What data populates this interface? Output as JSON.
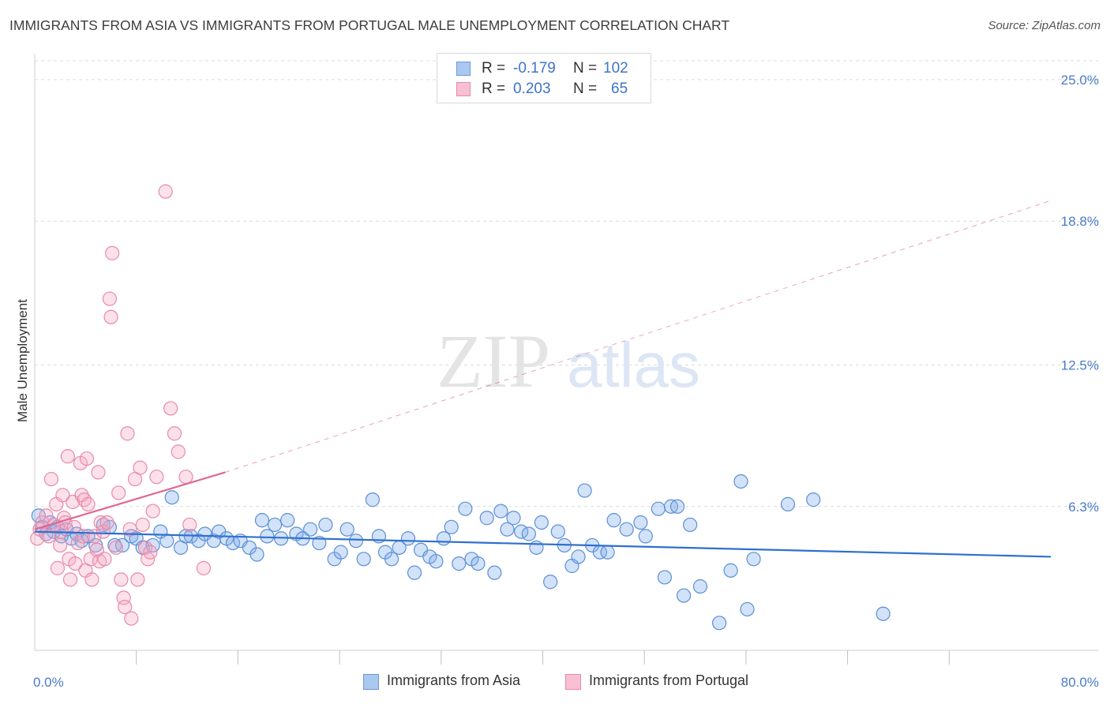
{
  "title": "IMMIGRANTS FROM ASIA VS IMMIGRANTS FROM PORTUGAL MALE UNEMPLOYMENT CORRELATION CHART",
  "source": "Source: ZipAtlas.com",
  "watermark": {
    "zip": "ZIP",
    "atlas": "atlas"
  },
  "legend_top": {
    "rows": [
      {
        "r_label": "R =",
        "r_value": "-0.179",
        "n_label": "N =",
        "n_value": "102",
        "color": "#aac8f0",
        "border": "#6a9ad8"
      },
      {
        "r_label": "R =",
        "r_value": "0.203",
        "n_label": "N =",
        "n_value": "65",
        "color": "#f8c0d2",
        "border": "#e68aa8"
      }
    ]
  },
  "chart_data": {
    "type": "scatter",
    "ylabel": "Male Unemployment",
    "xlim": [
      0,
      80
    ],
    "ylim": [
      0,
      26
    ],
    "y_ticks": [
      6.3,
      12.5,
      18.8,
      25.0
    ],
    "y_tick_labels": [
      "6.3%",
      "12.5%",
      "18.8%",
      "25.0%"
    ],
    "x_tick_labels": [
      "0.0%",
      "80.0%"
    ],
    "grid": true,
    "legend_position": "bottom",
    "series": [
      {
        "name": "Immigrants from Asia",
        "color": "#7fadea",
        "stroke": "#5b8fd6",
        "trend": {
          "x": [
            0,
            80
          ],
          "y": [
            5.2,
            4.1
          ],
          "color": "#2f6fcf"
        },
        "points": [
          [
            0.3,
            5.9
          ],
          [
            0.6,
            5.4
          ],
          [
            0.9,
            5.1
          ],
          [
            1.2,
            5.6
          ],
          [
            1.5,
            5.2
          ],
          [
            1.8,
            5.4
          ],
          [
            2.1,
            5.0
          ],
          [
            2.5,
            5.3
          ],
          [
            2.9,
            4.9
          ],
          [
            3.3,
            5.1
          ],
          [
            3.7,
            4.8
          ],
          [
            4.2,
            5.0
          ],
          [
            4.8,
            4.6
          ],
          [
            5.4,
            5.5
          ],
          [
            5.9,
            5.4
          ],
          [
            6.3,
            4.6
          ],
          [
            6.9,
            4.6
          ],
          [
            7.6,
            5.0
          ],
          [
            8.0,
            4.9
          ],
          [
            8.5,
            4.5
          ],
          [
            9.3,
            4.6
          ],
          [
            9.9,
            5.2
          ],
          [
            10.4,
            4.8
          ],
          [
            10.8,
            6.7
          ],
          [
            11.5,
            4.5
          ],
          [
            11.9,
            5.0
          ],
          [
            12.3,
            5.0
          ],
          [
            12.9,
            4.8
          ],
          [
            13.4,
            5.1
          ],
          [
            14.1,
            4.8
          ],
          [
            14.5,
            5.2
          ],
          [
            15.1,
            4.9
          ],
          [
            15.6,
            4.7
          ],
          [
            16.2,
            4.8
          ],
          [
            16.9,
            4.5
          ],
          [
            17.5,
            4.2
          ],
          [
            17.9,
            5.7
          ],
          [
            18.3,
            5.0
          ],
          [
            18.9,
            5.5
          ],
          [
            19.4,
            4.9
          ],
          [
            19.9,
            5.7
          ],
          [
            20.6,
            5.1
          ],
          [
            21.1,
            4.9
          ],
          [
            21.7,
            5.3
          ],
          [
            22.4,
            4.7
          ],
          [
            22.9,
            5.5
          ],
          [
            23.6,
            4.0
          ],
          [
            24.1,
            4.3
          ],
          [
            24.6,
            5.3
          ],
          [
            25.3,
            4.8
          ],
          [
            25.9,
            4.0
          ],
          [
            26.6,
            6.6
          ],
          [
            27.1,
            5.0
          ],
          [
            27.6,
            4.3
          ],
          [
            28.1,
            4.0
          ],
          [
            28.7,
            4.5
          ],
          [
            29.4,
            4.9
          ],
          [
            29.9,
            3.4
          ],
          [
            30.4,
            4.4
          ],
          [
            31.1,
            4.1
          ],
          [
            31.6,
            3.9
          ],
          [
            32.2,
            4.9
          ],
          [
            32.8,
            5.4
          ],
          [
            33.4,
            3.8
          ],
          [
            33.9,
            6.2
          ],
          [
            34.4,
            4.0
          ],
          [
            34.9,
            3.8
          ],
          [
            35.6,
            5.8
          ],
          [
            36.2,
            3.4
          ],
          [
            36.7,
            6.1
          ],
          [
            37.2,
            5.3
          ],
          [
            37.7,
            5.8
          ],
          [
            38.3,
            5.2
          ],
          [
            38.9,
            5.1
          ],
          [
            39.5,
            4.5
          ],
          [
            39.9,
            5.6
          ],
          [
            40.6,
            3.0
          ],
          [
            41.2,
            5.2
          ],
          [
            41.7,
            4.6
          ],
          [
            42.3,
            3.7
          ],
          [
            42.8,
            4.1
          ],
          [
            43.3,
            7.0
          ],
          [
            43.9,
            4.6
          ],
          [
            44.5,
            4.3
          ],
          [
            45.1,
            4.3
          ],
          [
            45.6,
            5.7
          ],
          [
            46.6,
            5.3
          ],
          [
            47.7,
            5.6
          ],
          [
            48.1,
            5.0
          ],
          [
            49.1,
            6.2
          ],
          [
            49.6,
            3.2
          ],
          [
            50.1,
            6.3
          ],
          [
            50.6,
            6.3
          ],
          [
            51.1,
            2.4
          ],
          [
            51.6,
            5.5
          ],
          [
            52.4,
            2.8
          ],
          [
            53.9,
            1.2
          ],
          [
            54.8,
            3.5
          ],
          [
            55.6,
            7.4
          ],
          [
            56.1,
            1.8
          ],
          [
            56.6,
            4.0
          ],
          [
            59.3,
            6.4
          ],
          [
            61.3,
            6.6
          ],
          [
            66.8,
            1.6
          ]
        ]
      },
      {
        "name": "Immigrants from Portugal",
        "color": "#f5aac4",
        "stroke": "#e88aaa",
        "trend": {
          "x": [
            0,
            15
          ],
          "y": [
            5.3,
            7.8
          ],
          "color": "#e06690",
          "ext_x": [
            15,
            80
          ],
          "ext_y": [
            7.8,
            19.7
          ]
        },
        "points": [
          [
            0.2,
            4.9
          ],
          [
            0.4,
            5.3
          ],
          [
            0.6,
            5.6
          ],
          [
            0.9,
            5.9
          ],
          [
            1.1,
            5.0
          ],
          [
            1.3,
            7.5
          ],
          [
            1.5,
            5.5
          ],
          [
            1.7,
            6.4
          ],
          [
            1.8,
            3.6
          ],
          [
            2.0,
            4.6
          ],
          [
            2.1,
            5.2
          ],
          [
            2.2,
            6.8
          ],
          [
            2.3,
            5.8
          ],
          [
            2.4,
            5.6
          ],
          [
            2.6,
            8.5
          ],
          [
            2.7,
            4.0
          ],
          [
            2.8,
            3.1
          ],
          [
            3.0,
            6.5
          ],
          [
            3.1,
            5.4
          ],
          [
            3.2,
            3.8
          ],
          [
            3.4,
            4.7
          ],
          [
            3.6,
            8.2
          ],
          [
            3.7,
            6.8
          ],
          [
            3.8,
            5.0
          ],
          [
            3.9,
            6.6
          ],
          [
            4.0,
            3.5
          ],
          [
            4.1,
            8.4
          ],
          [
            4.2,
            6.4
          ],
          [
            4.4,
            4.0
          ],
          [
            4.5,
            3.1
          ],
          [
            4.7,
            5.0
          ],
          [
            4.9,
            4.4
          ],
          [
            5.0,
            7.8
          ],
          [
            5.1,
            3.9
          ],
          [
            5.2,
            5.6
          ],
          [
            5.4,
            5.2
          ],
          [
            5.5,
            4.0
          ],
          [
            5.7,
            5.6
          ],
          [
            5.9,
            15.4
          ],
          [
            6.0,
            14.6
          ],
          [
            6.1,
            17.4
          ],
          [
            6.4,
            4.5
          ],
          [
            6.6,
            6.9
          ],
          [
            6.8,
            3.1
          ],
          [
            7.0,
            2.3
          ],
          [
            7.1,
            1.9
          ],
          [
            7.3,
            9.5
          ],
          [
            7.5,
            5.3
          ],
          [
            7.6,
            1.4
          ],
          [
            7.9,
            7.5
          ],
          [
            8.1,
            3.1
          ],
          [
            8.3,
            8.0
          ],
          [
            8.5,
            5.5
          ],
          [
            8.7,
            4.5
          ],
          [
            8.9,
            4.0
          ],
          [
            9.1,
            4.3
          ],
          [
            9.3,
            6.1
          ],
          [
            9.6,
            7.6
          ],
          [
            10.3,
            20.1
          ],
          [
            10.7,
            10.6
          ],
          [
            11.0,
            9.5
          ],
          [
            11.3,
            8.7
          ],
          [
            11.9,
            7.6
          ],
          [
            12.2,
            5.5
          ],
          [
            13.3,
            3.6
          ]
        ]
      }
    ]
  },
  "legend_bottom": [
    {
      "label": "Immigrants from Asia",
      "color": "#aac8f0",
      "border": "#6a9ad8"
    },
    {
      "label": "Immigrants from Portugal",
      "color": "#f8c0d2",
      "border": "#e68aa8"
    }
  ]
}
